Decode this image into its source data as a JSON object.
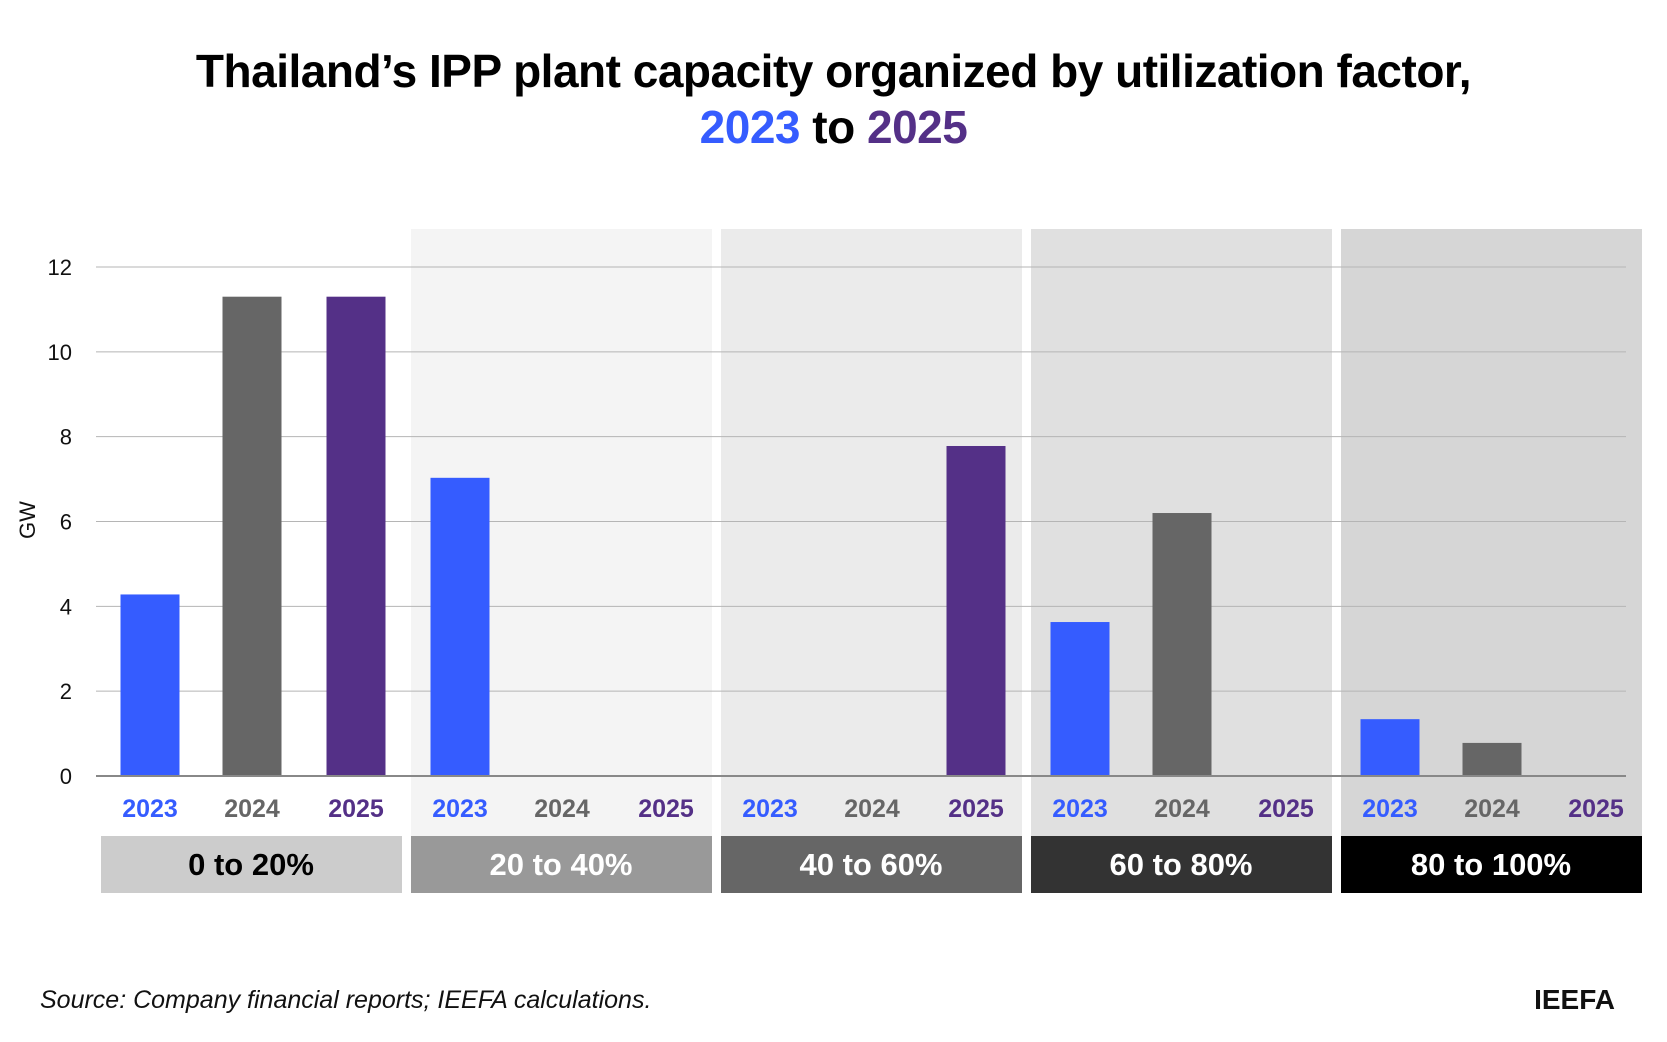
{
  "title": {
    "line1": "Thailand’s IPP plant capacity organized by utilization factor,",
    "year_start": "2023",
    "connector": "to",
    "year_end": "2025"
  },
  "source": "Source: Company financial reports; IEEFA calculations.",
  "brand": "IEEFA",
  "chart_data": {
    "type": "bar",
    "title": "Thailand’s IPP plant capacity organized by utilization factor, 2023 to 2025",
    "ylabel": "GW",
    "xlabel": "",
    "ylim": [
      0,
      12
    ],
    "yticks": [
      "0",
      "2",
      "4",
      "6",
      "8",
      "10",
      "12"
    ],
    "grid": true,
    "groups": [
      "0 to 20%",
      "20 to 40%",
      "40 to 60%",
      "60 to 80%",
      "80 to 100%"
    ],
    "group_colors": [
      "#cccccc",
      "#999999",
      "#666666",
      "#333333",
      "#000000"
    ],
    "group_text_colors": [
      "#000000",
      "#ffffff",
      "#ffffff",
      "#ffffff",
      "#ffffff"
    ],
    "group_backgrounds": [
      "#ffffff",
      "#f4f4f4",
      "#ebebeb",
      "#e0e0e0",
      "#d6d6d6"
    ],
    "series": [
      {
        "name": "2023",
        "color": "#355cff",
        "values": [
          4.28,
          7.03,
          0,
          3.63,
          1.34
        ]
      },
      {
        "name": "2024",
        "color": "#666666",
        "values": [
          11.3,
          0,
          0,
          6.2,
          0.78
        ]
      },
      {
        "name": "2025",
        "color": "#543087",
        "values": [
          11.3,
          0,
          7.78,
          0,
          0
        ]
      }
    ]
  }
}
